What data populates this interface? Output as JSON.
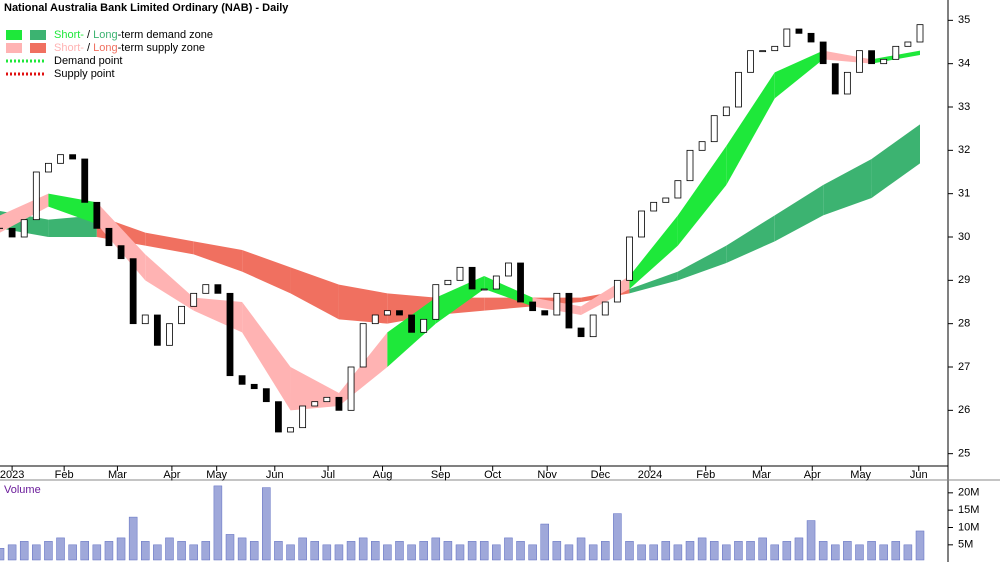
{
  "chart_data": {
    "type": "candlestick",
    "title": "National Australia Bank Limited Ordinary (NAB) - Daily",
    "volume_label": "Volume",
    "x": [
      0,
      1,
      2,
      3,
      4,
      5,
      6,
      7,
      8,
      9,
      10,
      11,
      12,
      13,
      14,
      15,
      16,
      17,
      18,
      19,
      20,
      21,
      22,
      23,
      24,
      25,
      26,
      27,
      28,
      29,
      30,
      31,
      32,
      33,
      34,
      35,
      36,
      37,
      38,
      39,
      40,
      41,
      42,
      43,
      44,
      45,
      46,
      47,
      48,
      49,
      50,
      51,
      52,
      53,
      54,
      55,
      56,
      57,
      58,
      59,
      60,
      61,
      62,
      63,
      64,
      65,
      66,
      67,
      68,
      69,
      70,
      71,
      72,
      73,
      74,
      75,
      76
    ],
    "close": [
      30.2,
      30.0,
      30.4,
      31.5,
      31.7,
      31.9,
      31.8,
      30.8,
      30.2,
      29.8,
      29.5,
      28.0,
      28.2,
      27.5,
      28.0,
      28.4,
      28.7,
      28.9,
      28.7,
      26.8,
      26.6,
      26.5,
      26.2,
      25.5,
      25.6,
      26.1,
      26.2,
      26.3,
      26.0,
      27.0,
      28.0,
      28.2,
      28.3,
      28.2,
      27.8,
      28.1,
      28.9,
      29.0,
      29.3,
      28.8,
      28.8,
      29.1,
      29.4,
      28.5,
      28.3,
      28.2,
      28.7,
      27.9,
      27.7,
      28.2,
      28.5,
      29.0,
      30.0,
      30.6,
      30.8,
      30.9,
      31.3,
      32.0,
      32.2,
      32.8,
      33.0,
      33.8,
      34.3,
      34.3,
      34.4,
      34.8,
      34.7,
      34.5,
      34.0,
      33.3,
      33.8,
      34.3,
      34.0,
      34.1,
      34.4,
      34.5,
      34.9
    ],
    "volume": [
      4,
      5,
      6,
      5,
      6,
      7,
      5,
      6,
      5,
      6,
      7,
      13,
      6,
      5,
      7,
      6,
      5,
      6,
      22,
      8,
      7,
      6,
      21.5,
      6,
      5,
      7,
      6,
      5,
      5,
      6,
      7,
      6,
      5,
      6,
      5,
      6,
      7,
      6,
      5,
      6,
      6,
      5,
      7,
      6,
      5,
      11,
      6,
      5,
      7,
      5,
      6,
      14,
      6,
      5,
      5,
      6,
      5,
      6,
      7,
      6,
      5,
      6,
      6,
      7,
      5,
      6,
      7,
      12,
      6,
      5,
      6,
      5,
      6,
      5,
      6,
      5,
      9
    ],
    "xlim": [
      0,
      78
    ],
    "xticks": [
      {
        "value": 1,
        "label": "2023"
      },
      {
        "value": 5.3,
        "label": "Feb"
      },
      {
        "value": 9.7,
        "label": "Mar"
      },
      {
        "value": 14.2,
        "label": "Apr"
      },
      {
        "value": 17.9,
        "label": "May"
      },
      {
        "value": 22.7,
        "label": "Jun"
      },
      {
        "value": 27.1,
        "label": "Jul"
      },
      {
        "value": 31.6,
        "label": "Aug"
      },
      {
        "value": 36.4,
        "label": "Sep"
      },
      {
        "value": 40.7,
        "label": "Oct"
      },
      {
        "value": 45.2,
        "label": "Nov"
      },
      {
        "value": 49.6,
        "label": "Dec"
      },
      {
        "value": 53.7,
        "label": "2024"
      },
      {
        "value": 58.3,
        "label": "Feb"
      },
      {
        "value": 62.9,
        "label": "Mar"
      },
      {
        "value": 67.1,
        "label": "Apr"
      },
      {
        "value": 71.1,
        "label": "May"
      },
      {
        "value": 75.9,
        "label": "Jun"
      }
    ],
    "ylim": [
      24.3,
      35.7
    ],
    "yticks": [
      25,
      26,
      27,
      28,
      29,
      30,
      31,
      32,
      33,
      34,
      35
    ],
    "vlim": [
      1.2,
      23.7
    ],
    "vticks": [
      {
        "value": 5,
        "label": "5M"
      },
      {
        "value": 10,
        "label": "10M"
      },
      {
        "value": 15,
        "label": "15M"
      },
      {
        "value": 20,
        "label": "20M"
      }
    ],
    "band_x": [
      0,
      4,
      8,
      12,
      16,
      20,
      24,
      28,
      32,
      36,
      40,
      44,
      48,
      52,
      56,
      60,
      64,
      68,
      72,
      76
    ],
    "long_band": {
      "upper": [
        30.6,
        30.4,
        30.5,
        30.1,
        29.9,
        29.7,
        29.3,
        28.9,
        28.7,
        28.6,
        28.6,
        28.6,
        28.6,
        28.8,
        29.2,
        29.8,
        30.5,
        31.2,
        31.8,
        32.6
      ],
      "lower": [
        30.2,
        30.0,
        30.0,
        29.8,
        29.6,
        29.2,
        28.7,
        28.1,
        28.0,
        28.2,
        28.3,
        28.4,
        28.5,
        28.7,
        29.0,
        29.4,
        29.9,
        30.5,
        30.9,
        31.7
      ],
      "zone": [
        "demand",
        "demand",
        "supply",
        "supply",
        "supply",
        "supply",
        "supply",
        "supply",
        "supply",
        "supply",
        "supply",
        "supply",
        "supply",
        "demand",
        "demand",
        "demand",
        "demand",
        "demand",
        "demand",
        "demand"
      ]
    },
    "short_band": {
      "upper": [
        30.5,
        31.0,
        30.8,
        29.6,
        28.6,
        28.5,
        27.0,
        26.4,
        27.8,
        28.6,
        29.1,
        28.6,
        28.4,
        29.1,
        30.5,
        32.1,
        33.8,
        34.3,
        34.1,
        34.3
      ],
      "lower": [
        30.1,
        30.7,
        30.3,
        29.0,
        28.3,
        27.8,
        26.0,
        26.1,
        27.0,
        28.0,
        28.8,
        28.4,
        28.2,
        28.8,
        29.8,
        31.2,
        33.2,
        34.1,
        34.0,
        34.2
      ],
      "zone": [
        "supply",
        "demand",
        "supply",
        "supply",
        "supply",
        "supply",
        "supply",
        "supply",
        "demand",
        "demand",
        "demand",
        "supply",
        "supply",
        "demand",
        "demand",
        "demand",
        "demand",
        "supply",
        "demand",
        "demand"
      ]
    },
    "colors": {
      "short_demand": "#1ee83a",
      "long_demand": "#3cb371",
      "short_supply": "#ffb3b3",
      "long_supply": "#f07060",
      "demand_point": "#1ee83a",
      "supply_point": "#e01010"
    },
    "legend": [
      {
        "parts": [
          "Short-",
          " / ",
          "Long",
          "-term demand zone"
        ]
      },
      {
        "parts": [
          "Short-",
          " / ",
          "Long",
          "-term supply zone"
        ]
      },
      {
        "parts": [
          "Demand point"
        ]
      },
      {
        "parts": [
          "Supply point"
        ]
      }
    ]
  }
}
